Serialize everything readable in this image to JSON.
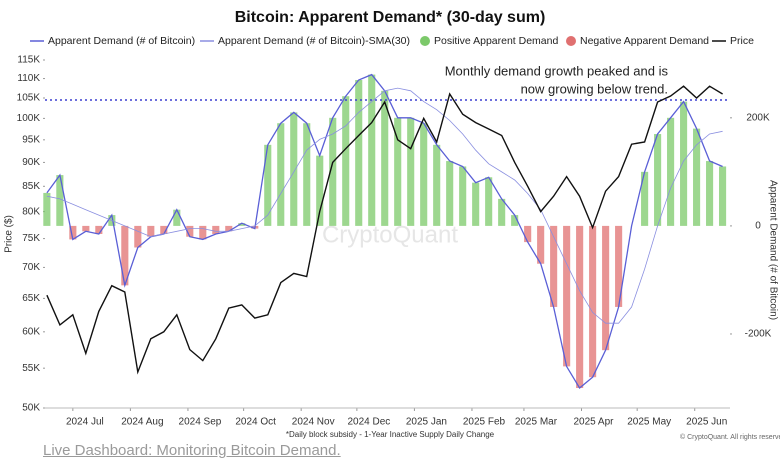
{
  "chart_data": {
    "type": "line",
    "title": "Bitcoin: Apparent Demand* (30-day sum)",
    "y_label": "Price ($)",
    "y2_label": "Apparent Demand (# of Bitcoin)",
    "annotation": [
      "Monthly demand growth peaked and is",
      "now growing below trend."
    ],
    "footnote": "*Daily block subsidy - 1-Year Inactive Supply Daily Change",
    "copyright": "© CryptoQuant. All rights reserved",
    "watermark": "CryptoQuant",
    "link": "Live Dashboard: Monitoring Bitcoin Demand.",
    "log_scale_y": true,
    "xlim": [
      "2024-06-16",
      "2025-06-20"
    ],
    "xticks": [
      {
        "value": "2024-07-01",
        "label": "2024 Jul"
      },
      {
        "value": "2024-08-01",
        "label": "2024 Aug"
      },
      {
        "value": "2024-09-01",
        "label": "2024 Sep"
      },
      {
        "value": "2024-10-01",
        "label": "2024 Oct"
      },
      {
        "value": "2024-11-01",
        "label": "2024 Nov"
      },
      {
        "value": "2024-12-01",
        "label": "2024 Dec"
      },
      {
        "value": "2025-01-01",
        "label": "2025 Jan"
      },
      {
        "value": "2025-02-01",
        "label": "2025 Feb"
      },
      {
        "value": "2025-03-01",
        "label": "2025 Mar"
      },
      {
        "value": "2025-04-01",
        "label": "2025 Apr"
      },
      {
        "value": "2025-05-01",
        "label": "2025 May"
      },
      {
        "value": "2025-06-01",
        "label": "2025 Jun"
      }
    ],
    "ylim": [
      50000,
      115000
    ],
    "yticks": [
      {
        "value": 50000,
        "label": "50K"
      },
      {
        "value": 55000,
        "label": "55K"
      },
      {
        "value": 60000,
        "label": "60K"
      },
      {
        "value": 65000,
        "label": "65K"
      },
      {
        "value": 70000,
        "label": "70K"
      },
      {
        "value": 75000,
        "label": "75K"
      },
      {
        "value": 80000,
        "label": "80K"
      },
      {
        "value": 85000,
        "label": "85K"
      },
      {
        "value": 90000,
        "label": "90K"
      },
      {
        "value": 95000,
        "label": "95K"
      },
      {
        "value": 100000,
        "label": "100K"
      },
      {
        "value": 105000,
        "label": "105K"
      },
      {
        "value": 110000,
        "label": "110K"
      },
      {
        "value": 115000,
        "label": "115K"
      }
    ],
    "y2lim": [
      -337000,
      307000
    ],
    "y2ticks": [
      {
        "value": -200000,
        "label": "-200K"
      },
      0,
      {
        "value": 200000,
        "label": "200K"
      }
    ],
    "reference_line": {
      "value": 104500,
      "color": "#3b3fd0"
    },
    "bar_legend": [
      {
        "name": "Positive Apparent Demand",
        "color": "#7cc96a"
      },
      {
        "name": "Negative Apparent Demand",
        "color": "#e07070"
      }
    ],
    "x": [
      "2024-06-17",
      "2024-06-24",
      "2024-07-01",
      "2024-07-08",
      "2024-07-15",
      "2024-07-22",
      "2024-07-29",
      "2024-08-05",
      "2024-08-12",
      "2024-08-19",
      "2024-08-26",
      "2024-09-02",
      "2024-09-09",
      "2024-09-16",
      "2024-09-23",
      "2024-09-30",
      "2024-10-07",
      "2024-10-14",
      "2024-10-21",
      "2024-10-28",
      "2024-11-04",
      "2024-11-11",
      "2024-11-18",
      "2024-11-25",
      "2024-12-02",
      "2024-12-09",
      "2024-12-16",
      "2024-12-23",
      "2024-12-30",
      "2025-01-06",
      "2025-01-13",
      "2025-01-20",
      "2025-01-27",
      "2025-02-03",
      "2025-02-10",
      "2025-02-17",
      "2025-02-24",
      "2025-03-03",
      "2025-03-10",
      "2025-03-17",
      "2025-03-24",
      "2025-03-31",
      "2025-04-07",
      "2025-04-14",
      "2025-04-21",
      "2025-04-28",
      "2025-05-05",
      "2025-05-12",
      "2025-05-19",
      "2025-05-26",
      "2025-06-02",
      "2025-06-09",
      "2025-06-16"
    ],
    "series": [
      {
        "name": "Apparent Demand (# of Bitcoin)",
        "color": "#5a5fd6",
        "axis": "y2",
        "bars": true,
        "values": [
          61000,
          94000,
          -25000,
          -10000,
          -15000,
          20000,
          -110000,
          -40000,
          -20000,
          -15000,
          30000,
          -20000,
          -25000,
          -15000,
          -10000,
          5000,
          -5000,
          150000,
          190000,
          210000,
          190000,
          130000,
          200000,
          240000,
          270000,
          280000,
          250000,
          200000,
          200000,
          190000,
          150000,
          120000,
          110000,
          80000,
          90000,
          50000,
          20000,
          -30000,
          -70000,
          -150000,
          -260000,
          -300000,
          -280000,
          -230000,
          -150000,
          0,
          100000,
          170000,
          200000,
          230000,
          180000,
          120000,
          110000
        ]
      },
      {
        "name": "Apparent Demand (# of Bitcoin)-SMA(30)",
        "color": "#8a8fe0",
        "axis": "y2",
        "values": [
          55000,
          50000,
          40000,
          30000,
          20000,
          10000,
          0,
          -10000,
          -20000,
          -15000,
          -10000,
          -5000,
          -5000,
          -10000,
          -10000,
          -5000,
          0,
          20000,
          60000,
          100000,
          140000,
          160000,
          170000,
          185000,
          210000,
          230000,
          250000,
          255000,
          250000,
          230000,
          215000,
          195000,
          170000,
          140000,
          115000,
          100000,
          85000,
          60000,
          30000,
          -20000,
          -70000,
          -120000,
          -160000,
          -180000,
          -180000,
          -150000,
          -80000,
          0,
          70000,
          120000,
          150000,
          170000,
          175000
        ]
      },
      {
        "name": "Price",
        "color": "#111111",
        "axis": "y",
        "values": [
          65500,
          61000,
          62500,
          57000,
          63000,
          67000,
          66000,
          54500,
          59000,
          60000,
          62500,
          57500,
          56000,
          59000,
          63500,
          64000,
          62000,
          62500,
          67500,
          69000,
          68500,
          80000,
          90000,
          93000,
          96000,
          99000,
          104000,
          95000,
          93000,
          100000,
          94500,
          106000,
          101000,
          99000,
          97500,
          96000,
          90000,
          85000,
          80000,
          83000,
          87000,
          83000,
          77000,
          84000,
          87000,
          94000,
          94500,
          104000,
          105500,
          108000,
          105000,
          108000,
          106000
        ]
      }
    ]
  }
}
